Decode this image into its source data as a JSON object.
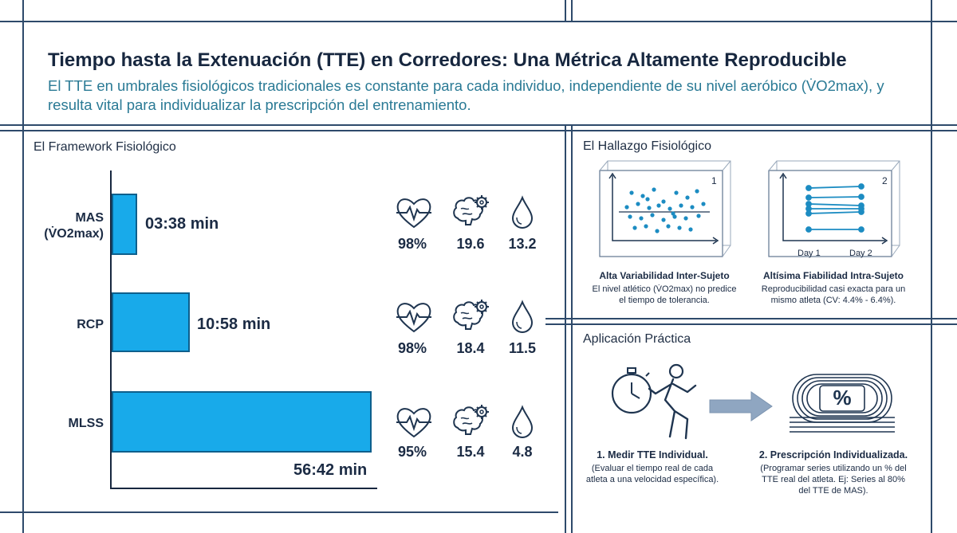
{
  "header": {
    "title": "Tiempo hasta la Extenuación (TTE) en Corredores: Una Métrica Altamente Reproducible",
    "subtitle": "El TTE en umbrales fisiológicos tradicionales es constante para cada individuo, independiente de su nivel aeróbico (V̇O2max), y resulta vital para individualizar la prescripción del entrenamiento."
  },
  "framework": {
    "title": "El Framework Fisiológico",
    "rows": [
      {
        "label_line1": "MAS",
        "label_line2": "(V̇O2max)",
        "time": "03:38 min",
        "time_minutes": 3.63,
        "hr": "98%",
        "brain": "19.6",
        "lactate": "13.2"
      },
      {
        "label_line1": "RCP",
        "label_line2": "",
        "time": "10:58 min",
        "time_minutes": 10.97,
        "hr": "98%",
        "brain": "18.4",
        "lactate": "11.5"
      },
      {
        "label_line1": "MLSS",
        "label_line2": "",
        "time": "56:42 min",
        "time_minutes": 56.7,
        "hr": "95%",
        "brain": "15.4",
        "lactate": "4.8"
      }
    ],
    "icons": [
      "heart-rate-icon",
      "brain-gear-icon",
      "drop-icon"
    ]
  },
  "findings": {
    "title": "El Hallazgo Fisiológico",
    "panel1": {
      "number": "1",
      "title": "Alta Variabilidad Inter-Sujeto",
      "desc_line1": "El nivel atlético (V̇O2max) no predice",
      "desc_line2": "el tiempo de tolerancia."
    },
    "panel2": {
      "number": "2",
      "day1": "Day 1",
      "day2": "Day 2",
      "title": "Altísima Fiabilidad Intra-Sujeto",
      "desc_line1": "Reproducibilidad casi exacta para un",
      "desc_line2": "mismo atleta (CV: 4.4% - 6.4%)."
    }
  },
  "application": {
    "title": "Aplicación Práctica",
    "step1": {
      "title": "1. Medir TTE Individual.",
      "desc_line1": "(Evaluar el tiempo real de cada",
      "desc_line2": "atleta a una velocidad específica)."
    },
    "step2": {
      "title": "2. Prescripción Individualizada.",
      "desc_line1": "(Programar series utilizando un % del",
      "desc_line2": "TTE real del atleta. Ej: Series al 80%",
      "desc_line3": "del TTE de MAS).",
      "percent_symbol": "%"
    }
  },
  "colors": {
    "bar": "#18aaea",
    "bar_border": "#0e5f8c",
    "accent_text": "#2a7a95",
    "ink": "#17273f"
  }
}
